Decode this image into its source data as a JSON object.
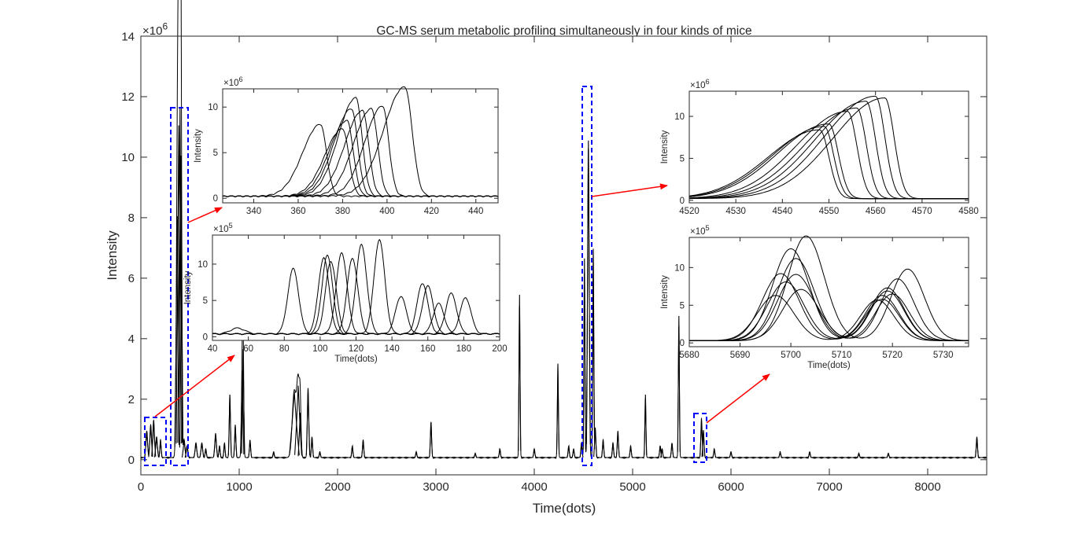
{
  "figure": {
    "title": "GC-MS serum metabolic profiling simultaneously in four kinds of mice"
  },
  "chart_data": [
    {
      "id": "main",
      "type": "line",
      "title": "GC-MS serum metabolic profiling simultaneously in four kinds of mice",
      "xlabel": "Time(dots)",
      "ylabel": "Intensity",
      "exponent_label": "×10^6",
      "xlim": [
        0,
        8600
      ],
      "ylim": [
        -0.5,
        14
      ],
      "xticks": [
        0,
        1000,
        2000,
        3000,
        4000,
        5000,
        6000,
        7000,
        8000
      ],
      "yticks": [
        0,
        2,
        4,
        6,
        8,
        10,
        12,
        14
      ],
      "grid": false,
      "baseline": 0.05,
      "peaks": [
        {
          "x": 60,
          "h": 0.9,
          "w": 8
        },
        {
          "x": 100,
          "h": 1.1,
          "w": 8
        },
        {
          "x": 130,
          "h": 1.25,
          "w": 8
        },
        {
          "x": 160,
          "h": 0.7,
          "w": 8
        },
        {
          "x": 200,
          "h": 0.6,
          "w": 6
        },
        {
          "x": 370,
          "h": 8.0,
          "w": 10
        },
        {
          "x": 385,
          "h": 11.0,
          "w": 10
        },
        {
          "x": 398,
          "h": 11.6,
          "w": 9
        },
        {
          "x": 408,
          "h": 10.0,
          "w": 8
        },
        {
          "x": 440,
          "h": 0.6,
          "w": 8
        },
        {
          "x": 470,
          "h": 0.4,
          "w": 8
        },
        {
          "x": 560,
          "h": 0.5,
          "w": 8
        },
        {
          "x": 620,
          "h": 0.5,
          "w": 8
        },
        {
          "x": 660,
          "h": 0.3,
          "w": 6
        },
        {
          "x": 760,
          "h": 0.8,
          "w": 8
        },
        {
          "x": 800,
          "h": 0.4,
          "w": 6
        },
        {
          "x": 850,
          "h": 0.5,
          "w": 6
        },
        {
          "x": 905,
          "h": 2.1,
          "w": 6
        },
        {
          "x": 960,
          "h": 1.1,
          "w": 6
        },
        {
          "x": 1030,
          "h": 2.9,
          "w": 7
        },
        {
          "x": 1040,
          "h": 3.6,
          "w": 6
        },
        {
          "x": 1110,
          "h": 0.6,
          "w": 6
        },
        {
          "x": 1350,
          "h": 0.2,
          "w": 6
        },
        {
          "x": 1560,
          "h": 2.2,
          "w": 20
        },
        {
          "x": 1600,
          "h": 2.4,
          "w": 14
        },
        {
          "x": 1620,
          "h": 1.5,
          "w": 8
        },
        {
          "x": 1700,
          "h": 2.3,
          "w": 7
        },
        {
          "x": 1740,
          "h": 0.7,
          "w": 6
        },
        {
          "x": 1820,
          "h": 0.2,
          "w": 6
        },
        {
          "x": 2150,
          "h": 0.4,
          "w": 6
        },
        {
          "x": 2260,
          "h": 0.6,
          "w": 6
        },
        {
          "x": 2800,
          "h": 0.2,
          "w": 6
        },
        {
          "x": 2950,
          "h": 1.2,
          "w": 6
        },
        {
          "x": 3400,
          "h": 0.15,
          "w": 6
        },
        {
          "x": 3650,
          "h": 0.3,
          "w": 6
        },
        {
          "x": 3850,
          "h": 5.4,
          "w": 5
        },
        {
          "x": 4000,
          "h": 0.3,
          "w": 6
        },
        {
          "x": 4240,
          "h": 3.1,
          "w": 5
        },
        {
          "x": 4350,
          "h": 0.4,
          "w": 6
        },
        {
          "x": 4400,
          "h": 0.3,
          "w": 6
        },
        {
          "x": 4480,
          "h": 0.5,
          "w": 6
        },
        {
          "x": 4510,
          "h": 6.6,
          "w": 5
        },
        {
          "x": 4550,
          "h": 10.5,
          "w": 8
        },
        {
          "x": 4600,
          "h": 6.9,
          "w": 5
        },
        {
          "x": 4620,
          "h": 1.0,
          "w": 6
        },
        {
          "x": 4700,
          "h": 0.6,
          "w": 6
        },
        {
          "x": 4800,
          "h": 0.5,
          "w": 6
        },
        {
          "x": 4850,
          "h": 0.9,
          "w": 6
        },
        {
          "x": 4980,
          "h": 0.4,
          "w": 6
        },
        {
          "x": 5130,
          "h": 2.1,
          "w": 5
        },
        {
          "x": 5280,
          "h": 0.4,
          "w": 6
        },
        {
          "x": 5300,
          "h": 0.3,
          "w": 6
        },
        {
          "x": 5400,
          "h": 0.5,
          "w": 6
        },
        {
          "x": 5470,
          "h": 4.7,
          "w": 5
        },
        {
          "x": 5700,
          "h": 1.3,
          "w": 6
        },
        {
          "x": 5720,
          "h": 0.9,
          "w": 6
        },
        {
          "x": 5830,
          "h": 0.3,
          "w": 6
        },
        {
          "x": 6000,
          "h": 0.2,
          "w": 6
        },
        {
          "x": 6500,
          "h": 0.2,
          "w": 6
        },
        {
          "x": 6800,
          "h": 0.2,
          "w": 6
        },
        {
          "x": 7300,
          "h": 0.15,
          "w": 6
        },
        {
          "x": 7600,
          "h": 0.15,
          "w": 6
        },
        {
          "x": 8500,
          "h": 0.7,
          "w": 6
        }
      ]
    },
    {
      "id": "inset-a",
      "type": "line",
      "ylabel": "Intensity",
      "exponent_label": "×10^6",
      "xlim": [
        326,
        450
      ],
      "ylim": [
        -0.5,
        12
      ],
      "xticks": [
        340,
        360,
        380,
        400,
        420,
        440
      ],
      "yticks": [
        0,
        5,
        10
      ],
      "curves": [
        {
          "x0": 370,
          "h": 7.9,
          "s": 5
        },
        {
          "x0": 380,
          "h": 7.4,
          "s": 5
        },
        {
          "x0": 382,
          "h": 8.3,
          "s": 5
        },
        {
          "x0": 384,
          "h": 9.6,
          "s": 5
        },
        {
          "x0": 386,
          "h": 10.8,
          "s": 5
        },
        {
          "x0": 389,
          "h": 9.4,
          "s": 5
        },
        {
          "x0": 393,
          "h": 9.6,
          "s": 5
        },
        {
          "x0": 398,
          "h": 9.9,
          "s": 5
        },
        {
          "x0": 408,
          "h": 12.0,
          "s": 6
        }
      ]
    },
    {
      "id": "inset-b",
      "type": "line",
      "xlabel": "Time(dots)",
      "ylabel": "Intensity",
      "exponent_label": "×10^5",
      "xlim": [
        40,
        200
      ],
      "ylim": [
        -0.5,
        14
      ],
      "xticks": [
        40,
        60,
        80,
        100,
        120,
        140,
        160,
        180,
        200
      ],
      "yticks": [
        0,
        5,
        10
      ],
      "curves": [
        {
          "x0": 54,
          "h": 0.8,
          "s": 4
        },
        {
          "x0": 85,
          "h": 9.0,
          "s": 3
        },
        {
          "x0": 102,
          "h": 10.5,
          "s": 3
        },
        {
          "x0": 104,
          "h": 10.8,
          "s": 3
        },
        {
          "x0": 106,
          "h": 10.0,
          "s": 3
        },
        {
          "x0": 112,
          "h": 11.2,
          "s": 3
        },
        {
          "x0": 118,
          "h": 10.4,
          "s": 3
        },
        {
          "x0": 123,
          "h": 12.3,
          "s": 3
        },
        {
          "x0": 133,
          "h": 13.0,
          "s": 3
        },
        {
          "x0": 145,
          "h": 5.2,
          "s": 3
        },
        {
          "x0": 157,
          "h": 7.0,
          "s": 3
        },
        {
          "x0": 160,
          "h": 6.6,
          "s": 3
        },
        {
          "x0": 166,
          "h": 4.2,
          "s": 3
        },
        {
          "x0": 173,
          "h": 5.6,
          "s": 3
        },
        {
          "x0": 181,
          "h": 5.0,
          "s": 3
        }
      ]
    },
    {
      "id": "inset-c",
      "type": "line",
      "ylabel": "Intensity",
      "exponent_label": "×10^6",
      "xlim": [
        4520,
        4580
      ],
      "ylim": [
        -0.3,
        13
      ],
      "xticks": [
        4520,
        4530,
        4540,
        4550,
        4560,
        4570,
        4580
      ],
      "yticks": [
        0,
        5,
        10
      ],
      "curves": [
        {
          "peak": 4548,
          "h": 8.2,
          "sl": 11,
          "sr": 2
        },
        {
          "peak": 4549,
          "h": 8.6,
          "sl": 11,
          "sr": 2
        },
        {
          "peak": 4550,
          "h": 8.9,
          "sl": 11,
          "sr": 2
        },
        {
          "peak": 4554,
          "h": 10.4,
          "sl": 11,
          "sr": 2
        },
        {
          "peak": 4556,
          "h": 10.8,
          "sl": 11,
          "sr": 2
        },
        {
          "peak": 4558,
          "h": 11.6,
          "sl": 11,
          "sr": 2
        },
        {
          "peak": 4560,
          "h": 12.2,
          "sl": 11,
          "sr": 2
        },
        {
          "peak": 4562,
          "h": 12.0,
          "sl": 11,
          "sr": 2
        }
      ]
    },
    {
      "id": "inset-d",
      "type": "line",
      "xlabel": "Time(dots)",
      "ylabel": "Intensity",
      "exponent_label": "×10^5",
      "xlim": [
        5680,
        5735
      ],
      "ylim": [
        -0.5,
        14
      ],
      "xticks": [
        5680,
        5690,
        5700,
        5710,
        5720,
        5730
      ],
      "yticks": [
        0,
        5,
        10
      ],
      "curves": [
        {
          "p1": 5697,
          "h1": 6.0,
          "p2": 5717,
          "h2": 5.4
        },
        {
          "p1": 5698,
          "h1": 8.9,
          "p2": 5718,
          "h2": 5.5
        },
        {
          "p1": 5699,
          "h1": 7.8,
          "p2": 5718,
          "h2": 6.0
        },
        {
          "p1": 5700,
          "h1": 12.2,
          "p2": 5719,
          "h2": 6.6
        },
        {
          "p1": 5701,
          "h1": 10.9,
          "p2": 5719,
          "h2": 7.0
        },
        {
          "p1": 5701,
          "h1": 8.8,
          "p2": 5720,
          "h2": 6.2
        },
        {
          "p1": 5702,
          "h1": 6.8,
          "p2": 5721,
          "h2": 8.2
        },
        {
          "p1": 5703,
          "h1": 13.9,
          "p2": 5723,
          "h2": 9.5
        }
      ]
    }
  ]
}
